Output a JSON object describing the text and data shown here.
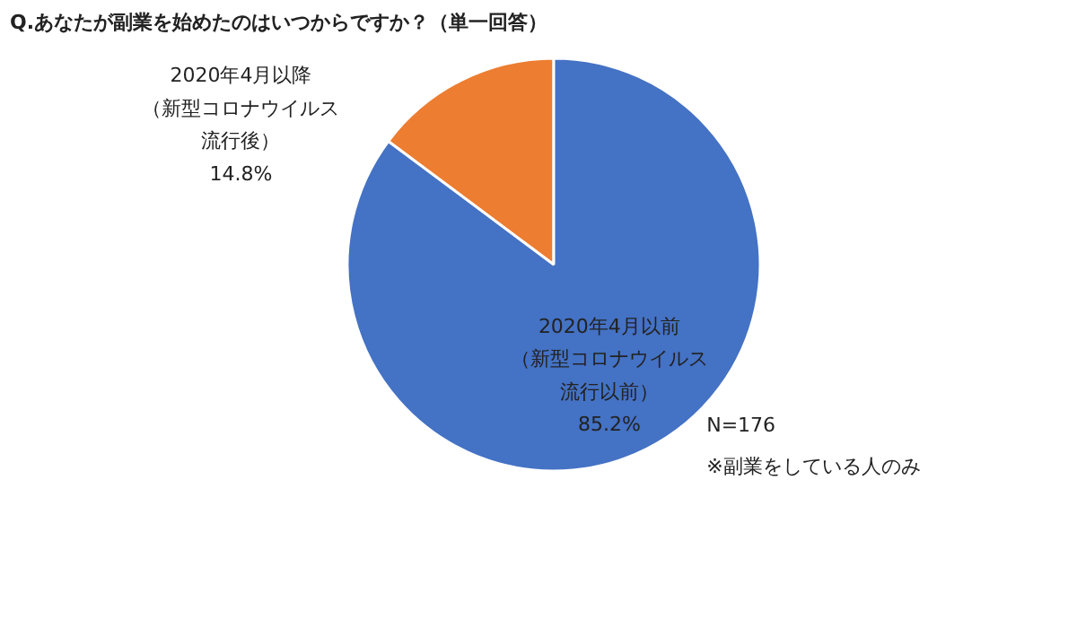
{
  "chart_data": {
    "type": "pie",
    "title": "Q.あなたが副業を始めたのはいつからですか？（単一回答）",
    "categories": [
      "2020年4月以降（新型コロナウイルス流行後）",
      "2020年4月以前（新型コロナウイルス流行以前）"
    ],
    "values": [
      14.8,
      85.2
    ],
    "colors": [
      "#ed7d31",
      "#4472c4"
    ],
    "value_labels": [
      "14.8%",
      "85.2%"
    ],
    "annotations": [
      "N=176",
      "※副業をしている人のみ"
    ],
    "legend": false
  }
}
